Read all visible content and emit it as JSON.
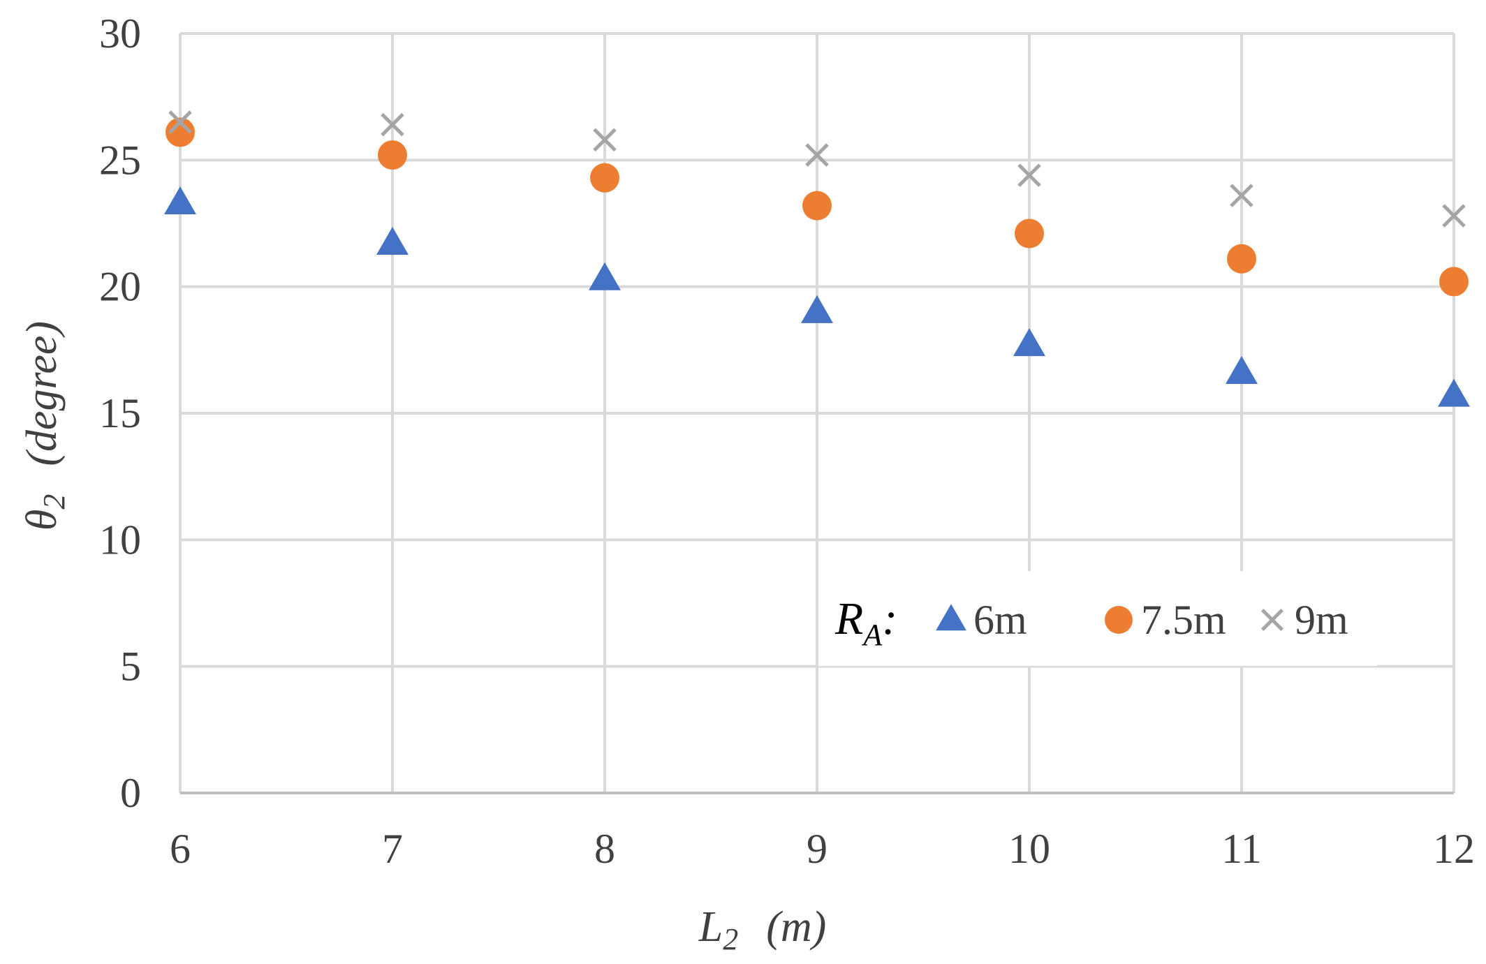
{
  "chart_data": {
    "type": "scatter",
    "title": "",
    "x": [
      6,
      7,
      8,
      9,
      10,
      11,
      12
    ],
    "xlim": [
      6,
      12
    ],
    "ylim": [
      0,
      30
    ],
    "x_ticks": [
      "6",
      "7",
      "8",
      "9",
      "10",
      "11",
      "12"
    ],
    "y_ticks": [
      "0",
      "5",
      "10",
      "15",
      "20",
      "25",
      "30"
    ],
    "xlabel": {
      "symbol": "L",
      "subscript": "2",
      "unit": "(m)"
    },
    "ylabel": {
      "symbol": "θ",
      "subscript": "2",
      "unit": "(degree)"
    },
    "grid": true,
    "legend": {
      "position": "bottom-right",
      "title_symbol": "R",
      "title_subscript": "A",
      "title_suffix": ":"
    },
    "series": [
      {
        "name": "6m",
        "marker": "triangle",
        "color": "#4472C4",
        "values": [
          23.3,
          21.7,
          20.3,
          19.0,
          17.7,
          16.6,
          15.7
        ]
      },
      {
        "name": "7.5m",
        "marker": "circle",
        "color": "#ED7D31",
        "values": [
          26.1,
          25.2,
          24.3,
          23.2,
          22.1,
          21.1,
          20.2
        ]
      },
      {
        "name": "9m",
        "marker": "x",
        "color": "#A5A5A5",
        "values": [
          26.5,
          26.4,
          25.8,
          25.2,
          24.4,
          23.6,
          22.8
        ]
      }
    ],
    "gridline_color": "#D9D9D9",
    "text_color": "#404040"
  }
}
